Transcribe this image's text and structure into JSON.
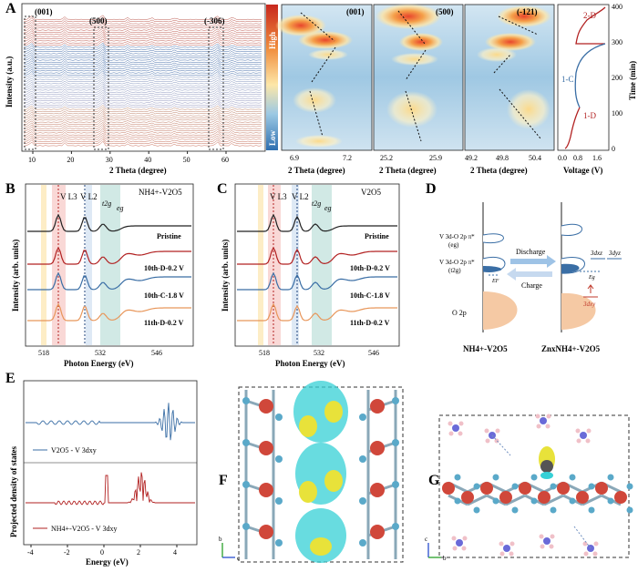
{
  "panels": {
    "A": {
      "label": "A",
      "ylabel": "Intensity (a.u.)",
      "xlabel": "2 Theta (degree)",
      "xticks": [
        "10",
        "20",
        "30",
        "40",
        "50",
        "60"
      ],
      "peak_labels": [
        "(001)",
        "(500)",
        "(-306)"
      ],
      "heatmap_high": "High",
      "heatmap_low": "Low",
      "map_panels": [
        {
          "title": "(001)",
          "ticks": [
            "6.9",
            "7.2"
          ]
        },
        {
          "title": "(500)",
          "ticks": [
            "25.2",
            "25.9"
          ]
        },
        {
          "title": "(-121)",
          "ticks": [
            "49.2",
            "49.8",
            "50.4"
          ]
        }
      ],
      "map_xlabel": "2 Theta (degree)",
      "voltage_xlabel": "Voltage (V)",
      "voltage_ticks": [
        "0.0",
        "0.8",
        "1.6"
      ],
      "time_label": "Time (min)",
      "time_ticks": [
        "0",
        "100",
        "200",
        "300",
        "400"
      ],
      "stage_labels": [
        "2-D",
        "1-C",
        "1-D"
      ]
    },
    "B": {
      "label": "B",
      "sample": "NH4+-V2O5",
      "ylabel": "Intensity (arb. units)",
      "xlabel": "Photon Energy (eV)",
      "xticks": [
        "518",
        "532",
        "546"
      ],
      "edge_labels": [
        "V L3",
        "V L2",
        "t2g",
        "eg"
      ],
      "curves": [
        "Pristine",
        "10th-D-0.2 V",
        "10th-C-1.8 V",
        "11th-D-0.2 V"
      ]
    },
    "C": {
      "label": "C",
      "sample": "V2O5",
      "ylabel": "Intensity (arb. units)",
      "xlabel": "Photon Energy (eV)",
      "xticks": [
        "518",
        "532",
        "546"
      ],
      "edge_labels": [
        "V L3",
        "V L2",
        "t2g",
        "eg"
      ],
      "curves": [
        "Pristine",
        "10th-D-0.2 V",
        "10th-C-1.8 V",
        "11th-D-0.2 V"
      ]
    },
    "D": {
      "label": "D",
      "level_upper": "V 3d-O 2p π*",
      "level_upper_sub": "(eg)",
      "level_lower": "V 3d-O 2p π*",
      "level_lower_sub": "(t2g)",
      "level_o2p": "O 2p",
      "arrow_discharge": "Discharge",
      "arrow_charge": "Charge",
      "ef": "EF",
      "eg_label": "Eg",
      "orb_xz": "3dxz",
      "orb_yz": "3dyz",
      "orb_xy": "3dxy",
      "left_name": "NH4+-V2O5",
      "right_name": "ZnxNH4+-V2O5"
    },
    "E": {
      "label": "E",
      "ylabel": "Projected density of states",
      "xlabel": "Energy (eV)",
      "xticks": [
        "-4",
        "-2",
        "0",
        "2",
        "4"
      ],
      "legend_top": "V2O5 - V 3dxy",
      "legend_bottom": "NH4+-V2O5 - V 3dxy"
    },
    "F": {
      "label": "F",
      "axis_b": "b",
      "axis_c": "c"
    },
    "G": {
      "label": "G",
      "axis_c": "c",
      "axis_b": "b"
    }
  },
  "colors": {
    "red_curve": "#b22222",
    "blue_curve": "#3a6ea5",
    "orange_curve": "#e8965a",
    "black_curve": "#222222",
    "v_atom": "#d0473a",
    "o_atom": "#5aa9c9",
    "isosurface_cyan": "#36d0d6",
    "isosurface_yellow": "#e8e23a"
  }
}
